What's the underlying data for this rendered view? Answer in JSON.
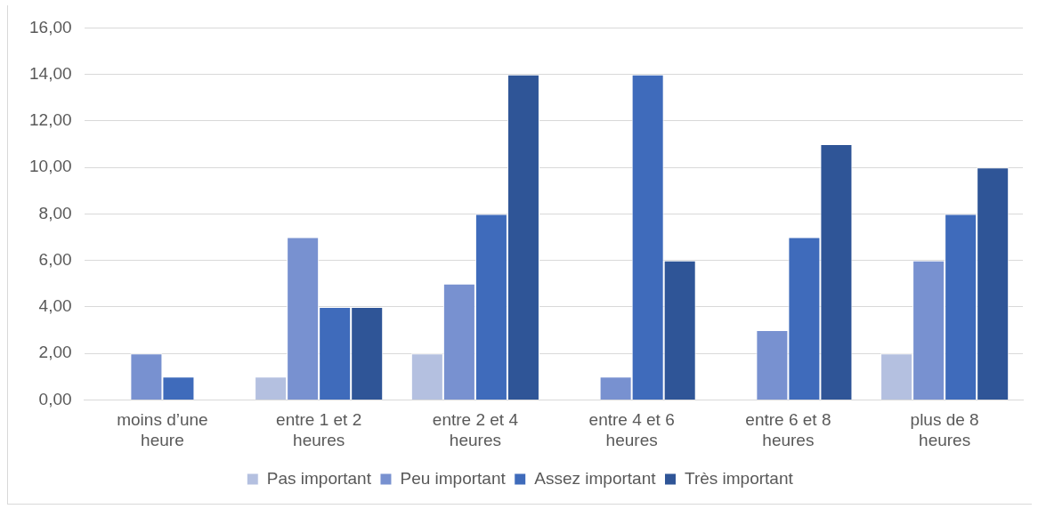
{
  "chart_data": {
    "type": "bar",
    "categories": [
      "moins d’une heure",
      "entre 1 et 2 heures",
      "entre 2 et 4 heures",
      "entre 4 et 6 heures",
      "entre 6 et 8 heures",
      "plus de 8 heures"
    ],
    "series": [
      {
        "name": "Pas important",
        "color": "#b4c0e0",
        "values": [
          0,
          1,
          2,
          0,
          0,
          2
        ]
      },
      {
        "name": "Peu important",
        "color": "#7891d0",
        "values": [
          2,
          7,
          5,
          1,
          3,
          6
        ]
      },
      {
        "name": "Assez important",
        "color": "#3f6bbb",
        "values": [
          1,
          4,
          8,
          14,
          7,
          8
        ]
      },
      {
        "name": "Très important",
        "color": "#2f5597",
        "values": [
          0,
          4,
          14,
          6,
          11,
          10
        ]
      }
    ],
    "ylim": [
      0,
      16
    ],
    "yticks": [
      {
        "value": 0,
        "label": "0,00"
      },
      {
        "value": 2,
        "label": "2,00"
      },
      {
        "value": 4,
        "label": "4,00"
      },
      {
        "value": 6,
        "label": "6,00"
      },
      {
        "value": 8,
        "label": "8,00"
      },
      {
        "value": 10,
        "label": "10,00"
      },
      {
        "value": 12,
        "label": "12,00"
      },
      {
        "value": 14,
        "label": "14,00"
      },
      {
        "value": 16,
        "label": "16,00"
      }
    ],
    "grid": "y",
    "legend": "bottom"
  }
}
